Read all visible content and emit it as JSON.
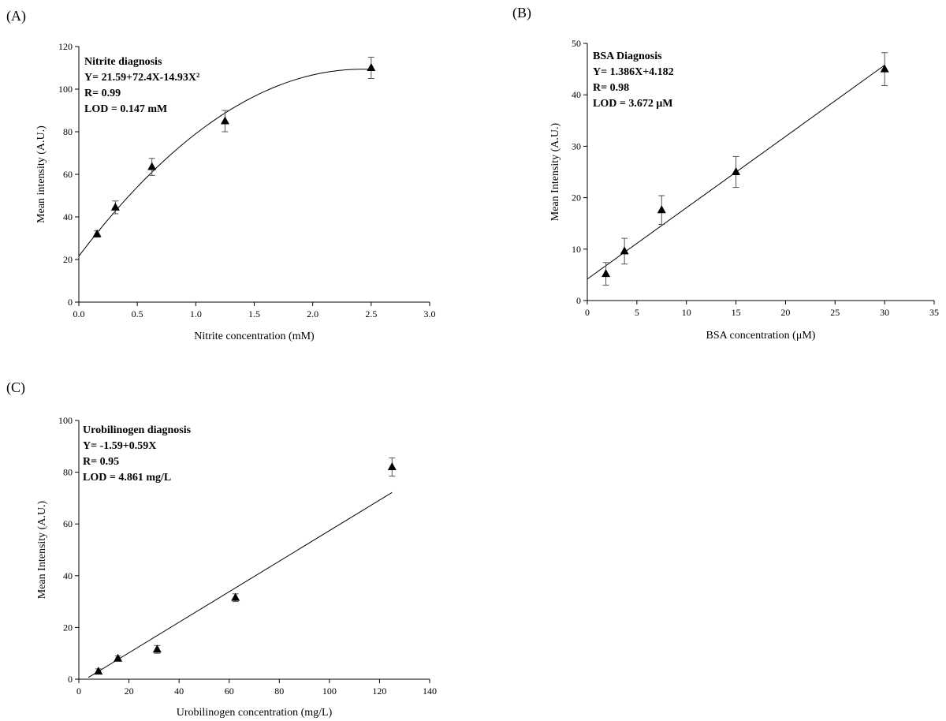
{
  "chart_data": [
    {
      "panel_label": "(A)",
      "type": "scatter",
      "fit": "quadratic",
      "fit_coefficients": [
        21.59,
        72.4,
        -14.93
      ],
      "fit_range": [
        0,
        2.5
      ],
      "x": [
        0.156,
        0.3125,
        0.625,
        1.25,
        2.5
      ],
      "y": [
        32,
        44.5,
        63.5,
        85,
        110
      ],
      "errors": [
        1.5,
        3,
        4,
        5,
        5
      ],
      "xlabel": "Nitrite concentration (mM)",
      "ylabel": "Mean intensity (A.U.)",
      "xlim": [
        0,
        3.0
      ],
      "ylim": [
        0,
        120
      ],
      "xticks": [
        0,
        0.5,
        1,
        1.5,
        2,
        2.5,
        3
      ],
      "xtick_labels": [
        "0.0",
        "0.5",
        "1.0",
        "1.5",
        "2.0",
        "2.5",
        "3.0"
      ],
      "yticks": [
        0,
        20,
        40,
        60,
        80,
        100,
        120
      ],
      "ytick_labels": [
        "0",
        "20",
        "40",
        "60",
        "80",
        "100",
        "120"
      ],
      "annotations": [
        "Nitrite diagnosis",
        "Y= 21.59+72.4X-14.93X²",
        "R= 0.99",
        "LOD = 0.147 mM"
      ]
    },
    {
      "panel_label": "(B)",
      "type": "scatter",
      "fit": "linear",
      "fit_coefficients": [
        4.182,
        1.386
      ],
      "fit_range": [
        0,
        30
      ],
      "x": [
        1.875,
        3.75,
        7.5,
        15,
        30
      ],
      "y": [
        5.2,
        9.6,
        17.6,
        25,
        45
      ],
      "errors": [
        2.2,
        2.5,
        2.8,
        3,
        3.2
      ],
      "xlabel": "BSA concentration (μM)",
      "ylabel": "Mean Intensity (A.U.)",
      "xlim": [
        0,
        35
      ],
      "ylim": [
        0,
        50
      ],
      "xticks": [
        0,
        5,
        10,
        15,
        20,
        25,
        30,
        35
      ],
      "xtick_labels": [
        "0",
        "5",
        "10",
        "15",
        "20",
        "25",
        "30",
        "35"
      ],
      "yticks": [
        0,
        10,
        20,
        30,
        40,
        50
      ],
      "ytick_labels": [
        "0",
        "10",
        "20",
        "30",
        "40",
        "50"
      ],
      "annotations": [
        "BSA Diagnosis",
        "Y= 1.386X+4.182",
        "R= 0.98",
        "LOD = 3.672 μM"
      ]
    },
    {
      "panel_label": "(C)",
      "type": "scatter",
      "fit": "linear",
      "fit_coefficients": [
        -1.59,
        0.59
      ],
      "fit_range": [
        3.8,
        125
      ],
      "x": [
        7.8,
        15.6,
        31.25,
        62.5,
        125
      ],
      "y": [
        3,
        8,
        11.5,
        31.5,
        82
      ],
      "errors": [
        1,
        1,
        1.5,
        1.5,
        3.5
      ],
      "xlabel": "Urobilinogen concentration (mg/L)",
      "ylabel": "Mean Intensity (A.U.)",
      "xlim": [
        0,
        140
      ],
      "ylim": [
        0,
        100
      ],
      "xticks": [
        0,
        20,
        40,
        60,
        80,
        100,
        120,
        140
      ],
      "xtick_labels": [
        "0",
        "20",
        "40",
        "60",
        "80",
        "100",
        "120",
        "140"
      ],
      "yticks": [
        0,
        20,
        40,
        60,
        80,
        100
      ],
      "ytick_labels": [
        "0",
        "20",
        "40",
        "60",
        "80",
        "100"
      ],
      "annotations": [
        "Urobilinogen diagnosis",
        "Y= -1.59+0.59X",
        "R= 0.95",
        "LOD = 4.861 mg/L"
      ]
    }
  ]
}
